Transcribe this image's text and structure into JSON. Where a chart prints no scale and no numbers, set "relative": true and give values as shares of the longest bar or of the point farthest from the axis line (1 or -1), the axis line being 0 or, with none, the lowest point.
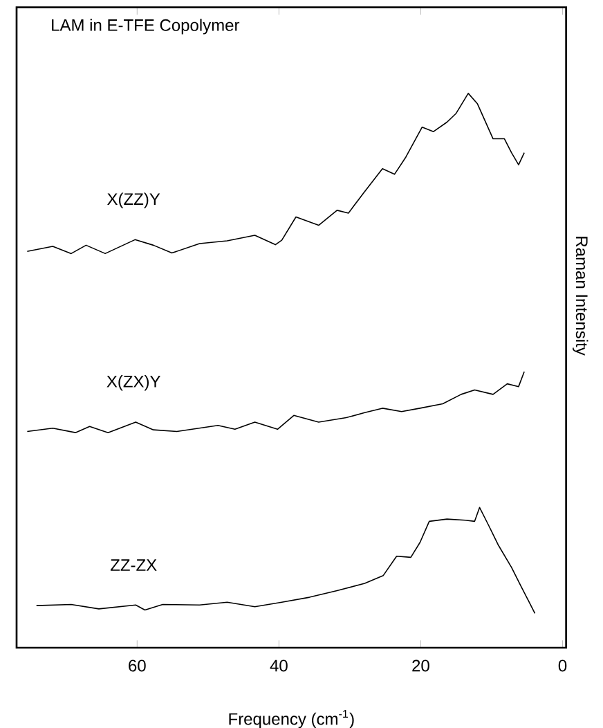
{
  "chart_data": {
    "type": "line",
    "title": "LAM in E-TFE Copolymer",
    "xlabel": "Frequency (cm$^{-1}$)",
    "ylabel": "Raman Intensity",
    "relative": true,
    "xlim": [
      77,
      -0.5
    ],
    "xticks": [
      60,
      40,
      20,
      0
    ],
    "series": [
      {
        "name": "X(ZZ)Y",
        "color": "#000000",
        "x": [
          75.5,
          71.9,
          69.3,
          67.2,
          64.5,
          60.3,
          57.7,
          55.1,
          51.2,
          47.3,
          43.4,
          40.5,
          39.6,
          37.6,
          34.4,
          31.8,
          30.2,
          27.9,
          25.4,
          23.7,
          22.1,
          19.8,
          18.2,
          16.3,
          15.0,
          13.3,
          12.0,
          9.8,
          8.2,
          7.2,
          6.2,
          5.4
        ],
        "values": [
          0.715,
          0.724,
          0.711,
          0.726,
          0.711,
          0.736,
          0.726,
          0.712,
          0.729,
          0.734,
          0.744,
          0.727,
          0.735,
          0.777,
          0.762,
          0.789,
          0.784,
          0.823,
          0.864,
          0.854,
          0.885,
          0.939,
          0.931,
          0.948,
          0.964,
          1.0,
          0.981,
          0.918,
          0.918,
          0.893,
          0.871,
          0.893
        ]
      },
      {
        "name": "X(ZX)Y",
        "color": "#000000",
        "x": [
          75.5,
          71.9,
          68.7,
          66.7,
          64.1,
          60.2,
          57.7,
          54.4,
          48.6,
          46.2,
          43.4,
          40.2,
          37.9,
          34.4,
          30.5,
          27.9,
          25.4,
          22.7,
          20.1,
          16.9,
          14.3,
          12.4,
          9.8,
          7.8,
          6.2,
          5.4
        ],
        "values": [
          0.39,
          0.396,
          0.388,
          0.399,
          0.388,
          0.407,
          0.393,
          0.39,
          0.401,
          0.394,
          0.407,
          0.394,
          0.419,
          0.407,
          0.415,
          0.424,
          0.432,
          0.426,
          0.432,
          0.44,
          0.457,
          0.465,
          0.457,
          0.476,
          0.471,
          0.498
        ]
      },
      {
        "name": "ZZ-ZX",
        "color": "#000000",
        "x": [
          74.2,
          69.3,
          65.4,
          60.2,
          58.9,
          56.4,
          51.2,
          47.3,
          43.4,
          39.6,
          35.7,
          31.8,
          27.9,
          25.3,
          23.4,
          21.4,
          20.1,
          18.8,
          16.3,
          13.7,
          12.4,
          11.7,
          10.4,
          9.1,
          7.2,
          5.9,
          3.9
        ],
        "values": [
          0.076,
          0.078,
          0.07,
          0.077,
          0.068,
          0.078,
          0.077,
          0.082,
          0.074,
          0.082,
          0.091,
          0.103,
          0.116,
          0.13,
          0.165,
          0.163,
          0.19,
          0.228,
          0.232,
          0.23,
          0.228,
          0.253,
          0.22,
          0.186,
          0.145,
          0.112,
          0.062
        ]
      }
    ]
  }
}
